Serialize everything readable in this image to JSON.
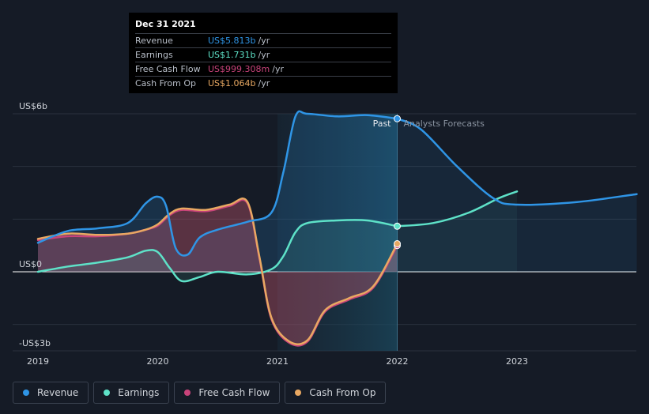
{
  "chart_data": {
    "type": "line",
    "x_ticks": [
      "2019",
      "2020",
      "2021",
      "2022",
      "2023"
    ],
    "y_ticks": [
      {
        "value": 6,
        "label": "US$6b"
      },
      {
        "value": 0,
        "label": "US$0"
      },
      {
        "value": -3,
        "label": "-US$3b"
      }
    ],
    "xlim": [
      2018.85,
      2024.0
    ],
    "ylim": [
      -3.0,
      6.0
    ],
    "past_label": "Past",
    "forecast_label": "Analysts Forecasts",
    "forecast_start": 2022.0,
    "series": [
      {
        "name": "Revenue",
        "color": "#2f95e6",
        "x": [
          2019.0,
          2019.25,
          2019.5,
          2019.75,
          2019.9,
          2020.0,
          2020.07,
          2020.15,
          2020.25,
          2020.35,
          2020.5,
          2020.75,
          2020.95,
          2021.05,
          2021.15,
          2021.25,
          2021.5,
          2021.75,
          2022.0
        ],
        "y": [
          1.1,
          1.55,
          1.65,
          1.85,
          2.6,
          2.85,
          2.5,
          0.9,
          0.65,
          1.3,
          1.6,
          1.9,
          2.25,
          3.8,
          5.9,
          6.0,
          5.9,
          5.95,
          5.813
        ]
      },
      {
        "name": "Revenue Forecast",
        "color": "#2f95e6",
        "x": [
          2022.0,
          2022.2,
          2022.5,
          2022.8,
          2023.0,
          2023.5,
          2024.0
        ],
        "y": [
          5.813,
          5.4,
          4.0,
          2.8,
          2.55,
          2.65,
          2.95
        ]
      },
      {
        "name": "Earnings",
        "color": "#5ee2c8",
        "x": [
          2019.0,
          2019.25,
          2019.5,
          2019.75,
          2019.9,
          2020.0,
          2020.1,
          2020.2,
          2020.35,
          2020.5,
          2020.75,
          2020.95,
          2021.05,
          2021.15,
          2021.25,
          2021.5,
          2021.75,
          2022.0
        ],
        "y": [
          0.0,
          0.2,
          0.35,
          0.55,
          0.8,
          0.75,
          0.15,
          -0.35,
          -0.2,
          0.0,
          -0.1,
          0.1,
          0.6,
          1.5,
          1.85,
          1.95,
          1.95,
          1.731
        ]
      },
      {
        "name": "Earnings Forecast",
        "color": "#5ee2c8",
        "x": [
          2022.0,
          2022.3,
          2022.6,
          2022.85,
          2023.0
        ],
        "y": [
          1.731,
          1.85,
          2.25,
          2.8,
          3.05
        ]
      },
      {
        "name": "Free Cash Flow",
        "color": "#c8437a",
        "x": [
          2019.0,
          2019.25,
          2019.5,
          2019.75,
          2019.9,
          2020.0,
          2020.1,
          2020.2,
          2020.4,
          2020.6,
          2020.75,
          2020.85,
          2020.95,
          2021.1,
          2021.25,
          2021.4,
          2021.6,
          2021.8,
          2022.0
        ],
        "y": [
          1.2,
          1.35,
          1.35,
          1.45,
          1.6,
          1.75,
          2.15,
          2.35,
          2.3,
          2.5,
          2.6,
          0.5,
          -1.8,
          -2.7,
          -2.65,
          -1.5,
          -1.05,
          -0.6,
          0.999
        ]
      },
      {
        "name": "Cash From Op",
        "color": "#e8a862",
        "x": [
          2019.0,
          2019.25,
          2019.5,
          2019.75,
          2019.9,
          2020.0,
          2020.1,
          2020.2,
          2020.4,
          2020.6,
          2020.75,
          2020.85,
          2020.95,
          2021.1,
          2021.25,
          2021.4,
          2021.6,
          2021.8,
          2022.0
        ],
        "y": [
          1.25,
          1.45,
          1.4,
          1.45,
          1.6,
          1.8,
          2.2,
          2.4,
          2.35,
          2.55,
          2.65,
          0.55,
          -1.75,
          -2.65,
          -2.6,
          -1.45,
          -1.0,
          -0.55,
          1.064
        ]
      }
    ]
  },
  "tooltip": {
    "date": "Dec 31 2021",
    "rows": [
      {
        "label": "Revenue",
        "value": "US$5.813b",
        "unit": "/yr",
        "color": "#2f95e6"
      },
      {
        "label": "Earnings",
        "value": "US$1.731b",
        "unit": "/yr",
        "color": "#5ee2c8"
      },
      {
        "label": "Free Cash Flow",
        "value": "US$999.308m",
        "unit": "/yr",
        "color": "#c8437a"
      },
      {
        "label": "Cash From Op",
        "value": "US$1.064b",
        "unit": "/yr",
        "color": "#e8a862"
      }
    ]
  },
  "legend": [
    {
      "label": "Revenue",
      "color": "#2f95e6"
    },
    {
      "label": "Earnings",
      "color": "#5ee2c8"
    },
    {
      "label": "Free Cash Flow",
      "color": "#c8437a"
    },
    {
      "label": "Cash From Op",
      "color": "#e8a862"
    }
  ]
}
